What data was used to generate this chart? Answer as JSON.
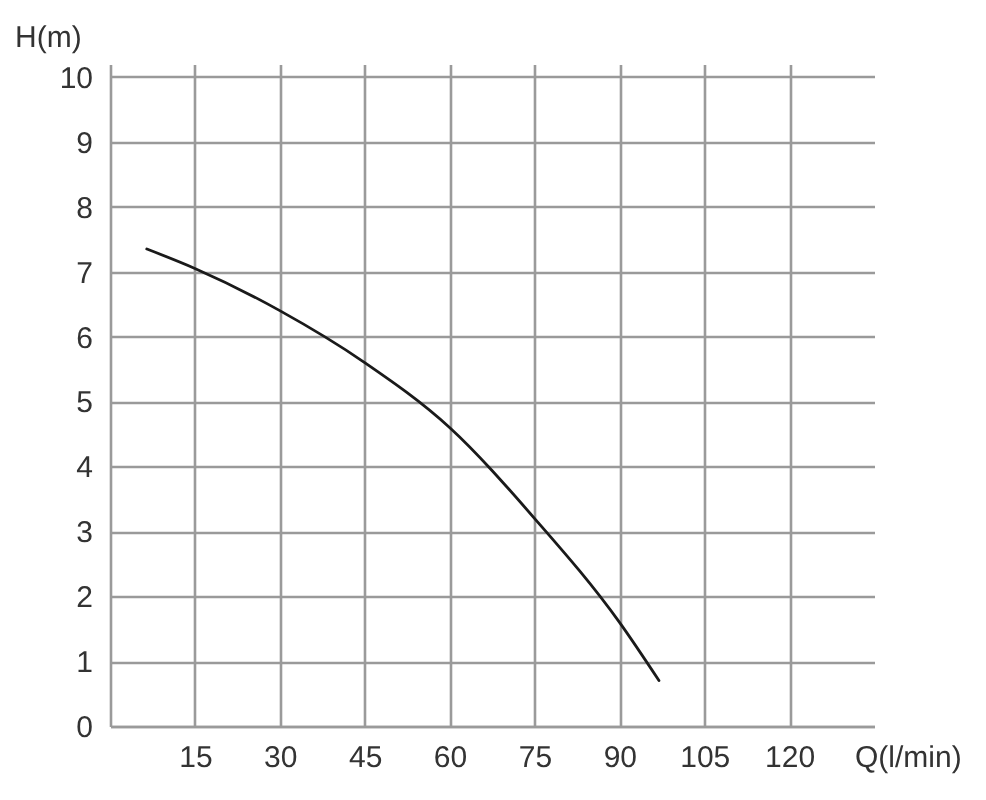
{
  "chart_data": {
    "type": "line",
    "xlabel": "Q(l/min)",
    "ylabel": "H(m)",
    "x": [
      6.5,
      15,
      30,
      45,
      60,
      75,
      90,
      97
    ],
    "series": [
      {
        "color": "#1a1a1a",
        "values": [
          7.35,
          7.05,
          6.4,
          5.6,
          4.6,
          3.2,
          1.6,
          0.7
        ]
      }
    ],
    "xlim": [
      0,
      135
    ],
    "ylim": [
      0,
      10.2
    ],
    "xticks": [
      15,
      30,
      45,
      60,
      75,
      90,
      105,
      120
    ],
    "yticks": [
      0,
      1,
      2,
      3,
      4,
      5,
      6,
      7,
      8,
      9,
      10
    ],
    "grid": true,
    "line_style": "solid"
  }
}
